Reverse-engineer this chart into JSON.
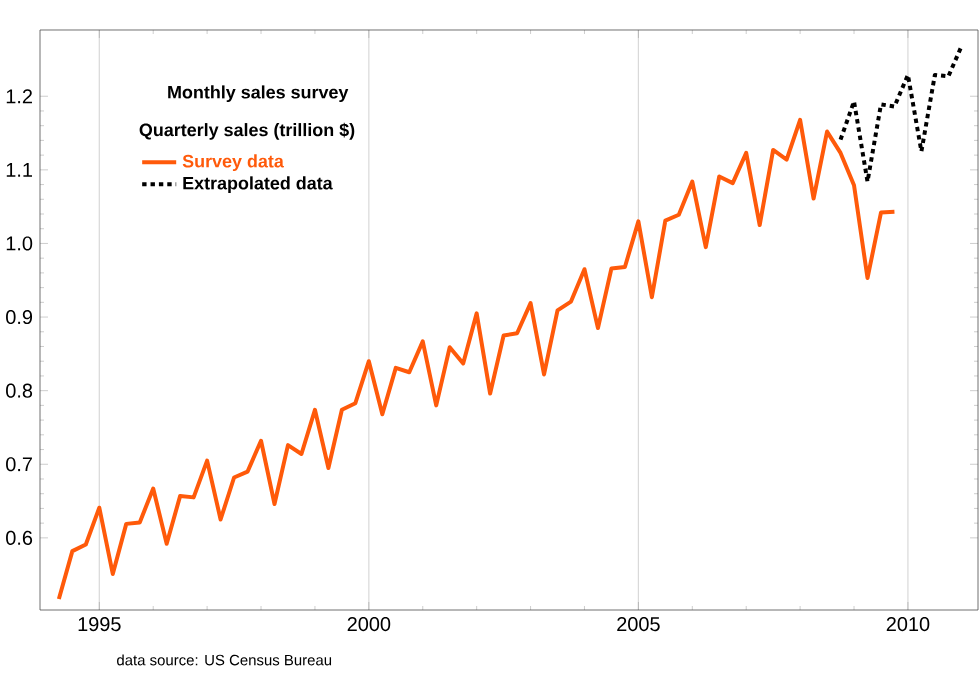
{
  "chart_data": {
    "type": "line",
    "title": "Monthly sales survey",
    "legend_title": "Quarterly sales (trillion $)",
    "annotations": [
      "data source: US Census Bureau"
    ],
    "xlim": [
      1993.9,
      2011.3
    ],
    "ylim": [
      0.502,
      1.29
    ],
    "xticks": [
      1995,
      2000,
      2005,
      2010
    ],
    "yticks": [
      0.6,
      0.7,
      0.8,
      0.9,
      {
        "value": 1.0,
        "label": "1.0"
      },
      1.1,
      1.2
    ],
    "grid": "x",
    "legend": "top left",
    "marker": "none",
    "series": [
      {
        "name": "Survey data",
        "color": "#ff5a0a",
        "line_style": "solid",
        "x": [
          1994.25,
          1994.5,
          1994.75,
          1995,
          1995.25,
          1995.5,
          1995.75,
          1996,
          1996.25,
          1996.5,
          1996.75,
          1997,
          1997.25,
          1997.5,
          1997.75,
          1998,
          1998.25,
          1998.5,
          1998.75,
          1999,
          1999.25,
          1999.5,
          1999.75,
          2000,
          2000.25,
          2000.5,
          2000.75,
          2001,
          2001.25,
          2001.5,
          2001.75,
          2002,
          2002.25,
          2002.5,
          2002.75,
          2003,
          2003.25,
          2003.5,
          2003.75,
          2004,
          2004.25,
          2004.5,
          2004.75,
          2005,
          2005.25,
          2005.5,
          2005.75,
          2006,
          2006.25,
          2006.5,
          2006.75,
          2007,
          2007.25,
          2007.5,
          2007.75,
          2008,
          2008.25,
          2008.5,
          2008.75,
          2009,
          2009.25,
          2009.5,
          2009.75
        ],
        "values": [
          0.517,
          0.582,
          0.591,
          0.641,
          0.551,
          0.619,
          0.621,
          0.667,
          0.592,
          0.657,
          0.655,
          0.705,
          0.625,
          0.682,
          0.69,
          0.732,
          0.646,
          0.726,
          0.714,
          0.774,
          0.695,
          0.774,
          0.783,
          0.84,
          0.768,
          0.831,
          0.825,
          0.867,
          0.78,
          0.859,
          0.837,
          0.905,
          0.796,
          0.875,
          0.878,
          0.919,
          0.822,
          0.909,
          0.921,
          0.965,
          0.885,
          0.966,
          0.968,
          1.03,
          0.927,
          1.031,
          1.039,
          1.084,
          0.995,
          1.091,
          1.082,
          1.123,
          1.025,
          1.127,
          1.114,
          1.168,
          1.061,
          1.152,
          1.123,
          1.079,
          0.953,
          1.042,
          1.043
        ]
      },
      {
        "name": "Extrapolated data",
        "color": "#000000",
        "line_style": "dotted",
        "x": [
          2008.75,
          2009,
          2009.25,
          2009.5,
          2009.75,
          2010,
          2010.25,
          2010.5,
          2010.75,
          2011
        ],
        "values": [
          1.141,
          1.193,
          1.084,
          1.189,
          1.186,
          1.229,
          1.125,
          1.229,
          1.227,
          1.269
        ]
      }
    ]
  }
}
